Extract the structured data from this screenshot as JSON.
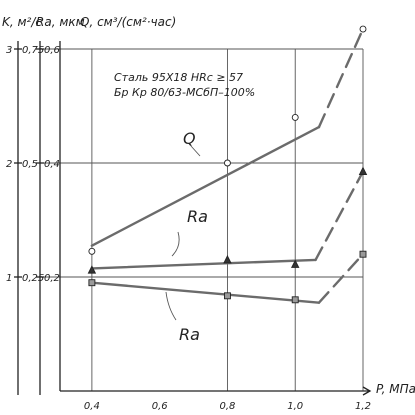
{
  "chart_data": {
    "type": "line",
    "xlabel": "P, МПа",
    "xticks": [
      "0,4",
      "0,6",
      "0,8",
      "1,0",
      "1,2"
    ],
    "xlim": [
      0.3,
      1.2
    ],
    "axes": [
      {
        "label": "K, м²/с",
        "ticks": [
          "1",
          "2",
          "3"
        ],
        "range": [
          0,
          3
        ]
      },
      {
        "label": "Ra, мкм",
        "ticks": [
          "0,25",
          "0,5",
          "0,75"
        ],
        "range": [
          0,
          0.75
        ]
      },
      {
        "label": "Q, см³/(см²·час)",
        "ticks": [
          "0,2",
          "0,4",
          "0,6"
        ],
        "range": [
          0,
          0.6
        ]
      }
    ],
    "annotations": [
      "Сталь 95Х18 HRc ≥ 57",
      "Бр Кр 80/63-МСбП–100%"
    ],
    "series": [
      {
        "name": "Q",
        "axis": 2,
        "marker": "circle",
        "points": [
          [
            0.4,
            0.245
          ],
          [
            0.8,
            0.4
          ],
          [
            1.0,
            0.48
          ]
        ],
        "solid": [
          [
            0.4,
            0.255
          ],
          [
            1.07,
            0.463
          ]
        ],
        "dashed": [
          [
            1.07,
            0.463
          ],
          [
            1.2,
            0.635
          ]
        ],
        "marker_points": [
          [
            0.4,
            0.245
          ],
          [
            0.8,
            0.4
          ],
          [
            1.0,
            0.48
          ],
          [
            1.2,
            0.635
          ]
        ]
      },
      {
        "name": "Ra",
        "axis": 2,
        "marker": "triangle",
        "solid": [
          [
            0.4,
            0.215
          ],
          [
            1.06,
            0.23
          ]
        ],
        "dashed": [
          [
            1.06,
            0.23
          ],
          [
            1.2,
            0.385
          ]
        ],
        "marker_points": [
          [
            0.4,
            0.212
          ],
          [
            0.8,
            0.23
          ],
          [
            1.0,
            0.222
          ],
          [
            1.2,
            0.385
          ]
        ]
      },
      {
        "name": "Ra",
        "axis": 2,
        "marker": "square",
        "solid": [
          [
            0.4,
            0.19
          ],
          [
            1.07,
            0.155
          ]
        ],
        "dashed": [
          [
            1.07,
            0.155
          ],
          [
            1.2,
            0.24
          ]
        ],
        "marker_points": [
          [
            0.4,
            0.19
          ],
          [
            0.8,
            0.167
          ],
          [
            1.0,
            0.16
          ],
          [
            1.2,
            0.24
          ]
        ]
      }
    ],
    "series_labels": [
      "Q",
      "Ra",
      "Ra"
    ],
    "grid": true
  }
}
